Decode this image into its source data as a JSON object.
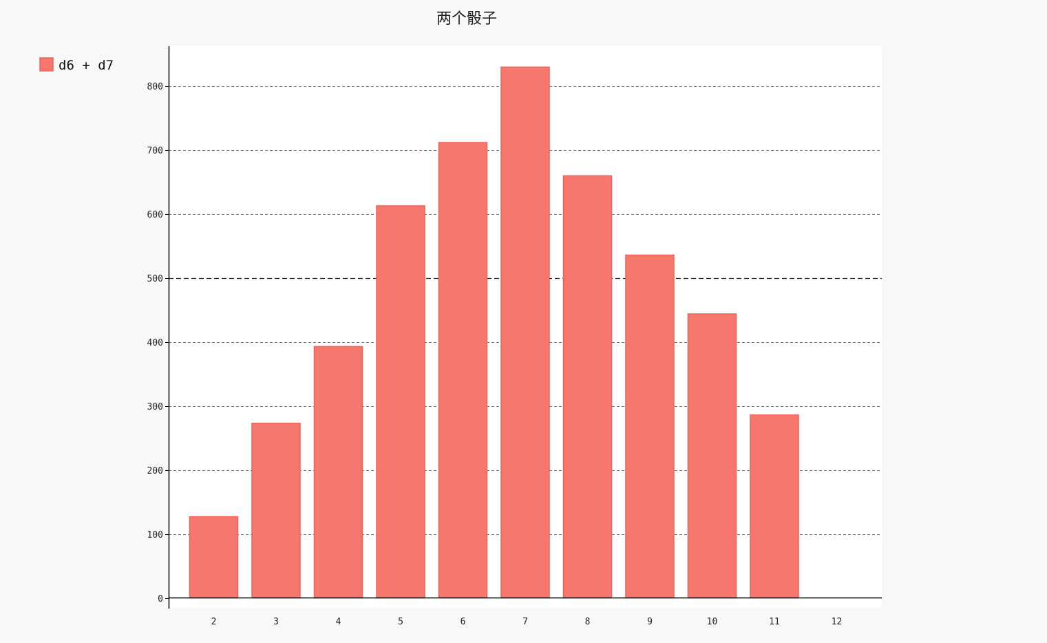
{
  "chart_data": {
    "type": "bar",
    "title": "两个骰子",
    "xlabel": "",
    "ylabel": "",
    "categories": [
      "2",
      "3",
      "4",
      "5",
      "6",
      "7",
      "8",
      "9",
      "10",
      "11",
      "12"
    ],
    "series": [
      {
        "name": "d6 + d7",
        "values": [
          127,
          273,
          393,
          613,
          712,
          830,
          660,
          536,
          444,
          286,
          0
        ]
      }
    ],
    "ylim": [
      0,
      846
    ],
    "yticks": [
      "0",
      "100",
      "200",
      "300",
      "400",
      "500",
      "600",
      "700",
      "800"
    ],
    "grid": true,
    "major_gridline": "500",
    "legend": "top-left"
  },
  "colors": {
    "bar_fill": "#f6776e",
    "bar_stroke": "#ee6257",
    "plot_background": "#ffffff",
    "page_background": "#f8f8f8",
    "grid": "#777777",
    "major_grid": "#222222",
    "axis": "#000000"
  }
}
